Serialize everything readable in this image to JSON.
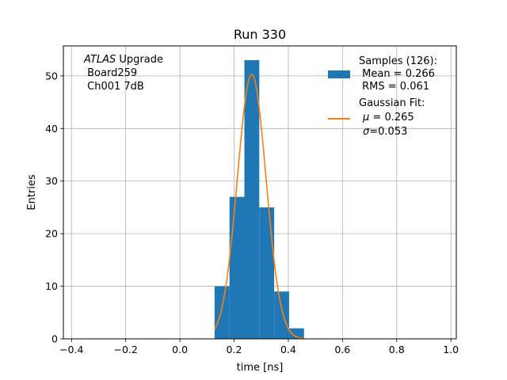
{
  "chart_data": {
    "type": "bar",
    "title": "Run 330",
    "xlabel": "time [ns]",
    "ylabel": "Entries",
    "xlim": [
      -0.43,
      1.02
    ],
    "ylim": [
      0,
      55.7
    ],
    "xticks": [
      -0.4,
      -0.2,
      0.0,
      0.2,
      0.4,
      0.6,
      0.8,
      1.0
    ],
    "xtick_labels": [
      "−0.4",
      "−0.2",
      "0.0",
      "0.2",
      "0.4",
      "0.6",
      "0.8",
      "1.0"
    ],
    "yticks": [
      0,
      10,
      20,
      30,
      40,
      50
    ],
    "grid": true,
    "histogram": {
      "color": "#1f77b4",
      "bins": [
        {
          "x0": 0.128,
          "x1": 0.183,
          "count": 10
        },
        {
          "x0": 0.183,
          "x1": 0.238,
          "count": 27
        },
        {
          "x0": 0.238,
          "x1": 0.293,
          "count": 53
        },
        {
          "x0": 0.293,
          "x1": 0.348,
          "count": 25
        },
        {
          "x0": 0.348,
          "x1": 0.403,
          "count": 9
        },
        {
          "x0": 0.403,
          "x1": 0.458,
          "count": 2
        }
      ]
    },
    "fit": {
      "color": "#ff7f0e",
      "mu": 0.265,
      "sigma": 0.053,
      "amplitude": 50.3,
      "x_range": [
        0.128,
        0.458
      ]
    },
    "legend": {
      "placement": "top-right",
      "samples_lines": [
        "Samples (126):",
        " Mean = 0.266",
        " RMS = 0.061"
      ],
      "fit_lines": [
        "Gaussian Fit:"
      ],
      "fit_mu_value": " = 0.265",
      "fit_sigma_value": "=0.053"
    },
    "annotation": {
      "italic_part": "ATLAS",
      "rest_part": " Upgrade",
      "line2": " Board259",
      "line3": " Ch001 7dB"
    }
  }
}
